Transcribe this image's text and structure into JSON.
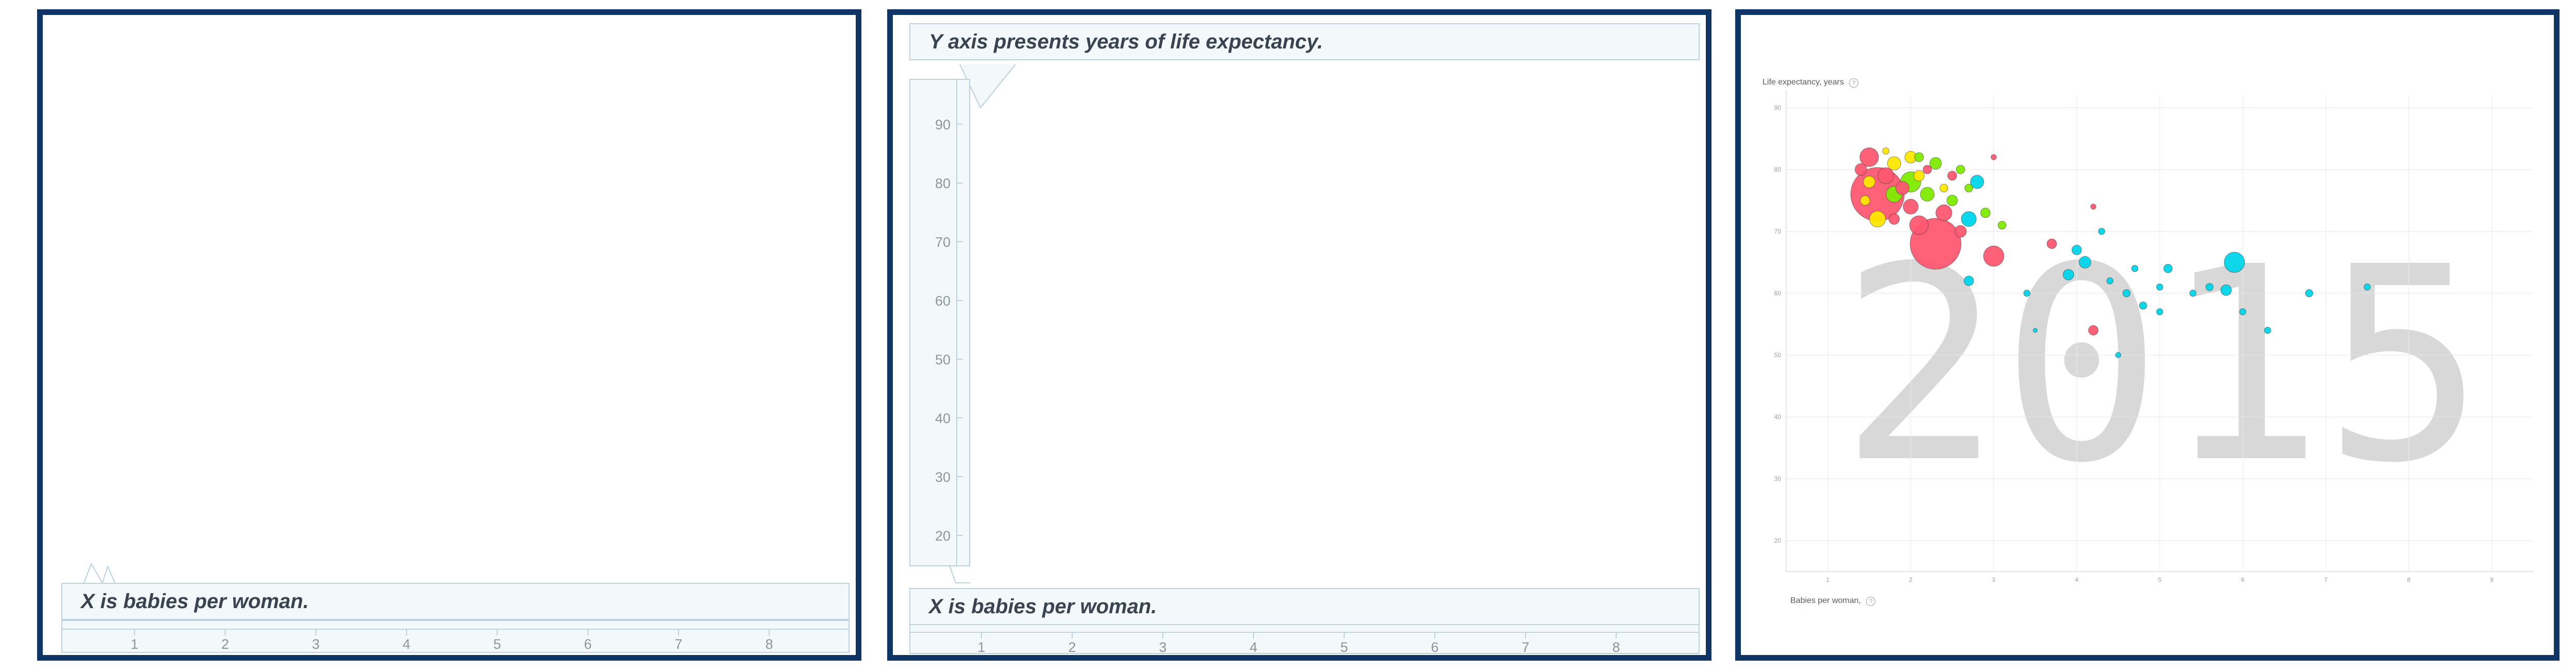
{
  "panels": [
    {
      "x_callout": "X is babies per woman.",
      "x_ticks": [
        1,
        2,
        3,
        4,
        5,
        6,
        7,
        8
      ]
    },
    {
      "y_callout": "Y axis presents years of life expectancy.",
      "x_callout": "X is babies per woman.",
      "y_ticks": [
        90,
        80,
        70,
        60,
        50,
        40,
        30,
        20
      ],
      "x_ticks": [
        1,
        2,
        3,
        4,
        5,
        6,
        7,
        8
      ]
    },
    {
      "ylabel": "Life expectancy, years",
      "xlabel": "Babies per woman,",
      "help_icon": "question-circle-icon",
      "year": "2015"
    }
  ],
  "chart_data": {
    "type": "scatter",
    "title": "",
    "xlabel": "Babies per woman,",
    "ylabel": "Life expectancy, years",
    "xlim": [
      0.5,
      9.5
    ],
    "ylim": [
      15,
      92
    ],
    "x_ticks": [
      1,
      2,
      3,
      4,
      5,
      6,
      7,
      8,
      9
    ],
    "y_ticks": [
      20,
      30,
      40,
      50,
      60,
      70,
      80,
      90
    ],
    "grid": true,
    "background_label": "2015",
    "colors": {
      "red": "#ff5872",
      "yellow": "#ffe700",
      "green": "#7feb00",
      "cyan": "#00d5e9"
    },
    "points": [
      {
        "x": 1.6,
        "y": 76.0,
        "size": 1.0,
        "color": "red"
      },
      {
        "x": 2.3,
        "y": 68.0,
        "size": 0.95,
        "color": "red"
      },
      {
        "x": 1.5,
        "y": 82.0,
        "size": 0.35,
        "color": "red"
      },
      {
        "x": 1.4,
        "y": 80.0,
        "size": 0.22,
        "color": "red"
      },
      {
        "x": 1.7,
        "y": 79.0,
        "size": 0.3,
        "color": "red"
      },
      {
        "x": 1.9,
        "y": 77.0,
        "size": 0.25,
        "color": "red"
      },
      {
        "x": 2.0,
        "y": 74.0,
        "size": 0.28,
        "color": "red"
      },
      {
        "x": 2.1,
        "y": 71.0,
        "size": 0.35,
        "color": "red"
      },
      {
        "x": 2.4,
        "y": 73.0,
        "size": 0.3,
        "color": "red"
      },
      {
        "x": 2.6,
        "y": 70.0,
        "size": 0.22,
        "color": "red"
      },
      {
        "x": 3.0,
        "y": 66.0,
        "size": 0.38,
        "color": "red"
      },
      {
        "x": 2.2,
        "y": 80.0,
        "size": 0.16,
        "color": "red"
      },
      {
        "x": 2.5,
        "y": 79.0,
        "size": 0.17,
        "color": "red"
      },
      {
        "x": 3.0,
        "y": 82.0,
        "size": 0.1,
        "color": "red"
      },
      {
        "x": 3.7,
        "y": 68.0,
        "size": 0.18,
        "color": "red"
      },
      {
        "x": 4.2,
        "y": 74.0,
        "size": 0.1,
        "color": "red"
      },
      {
        "x": 4.2,
        "y": 54.0,
        "size": 0.18,
        "color": "red"
      },
      {
        "x": 1.8,
        "y": 72.0,
        "size": 0.2,
        "color": "red"
      },
      {
        "x": 1.5,
        "y": 78.0,
        "size": 0.22,
        "color": "yellow"
      },
      {
        "x": 1.6,
        "y": 72.0,
        "size": 0.3,
        "color": "yellow"
      },
      {
        "x": 1.8,
        "y": 81.0,
        "size": 0.25,
        "color": "yellow"
      },
      {
        "x": 2.0,
        "y": 82.0,
        "size": 0.22,
        "color": "yellow"
      },
      {
        "x": 1.45,
        "y": 75.0,
        "size": 0.18,
        "color": "yellow"
      },
      {
        "x": 2.1,
        "y": 79.0,
        "size": 0.2,
        "color": "yellow"
      },
      {
        "x": 2.4,
        "y": 77.0,
        "size": 0.15,
        "color": "yellow"
      },
      {
        "x": 1.7,
        "y": 83.0,
        "size": 0.12,
        "color": "yellow"
      },
      {
        "x": 2.0,
        "y": 78.0,
        "size": 0.38,
        "color": "green"
      },
      {
        "x": 1.8,
        "y": 76.0,
        "size": 0.3,
        "color": "green"
      },
      {
        "x": 2.2,
        "y": 76.0,
        "size": 0.26,
        "color": "green"
      },
      {
        "x": 2.5,
        "y": 75.0,
        "size": 0.2,
        "color": "green"
      },
      {
        "x": 2.3,
        "y": 81.0,
        "size": 0.22,
        "color": "green"
      },
      {
        "x": 2.6,
        "y": 80.0,
        "size": 0.16,
        "color": "green"
      },
      {
        "x": 2.9,
        "y": 73.0,
        "size": 0.18,
        "color": "green"
      },
      {
        "x": 3.1,
        "y": 71.0,
        "size": 0.15,
        "color": "green"
      },
      {
        "x": 2.7,
        "y": 77.0,
        "size": 0.15,
        "color": "green"
      },
      {
        "x": 2.1,
        "y": 82.0,
        "size": 0.17,
        "color": "green"
      },
      {
        "x": 2.8,
        "y": 78.0,
        "size": 0.25,
        "color": "cyan"
      },
      {
        "x": 2.7,
        "y": 72.0,
        "size": 0.28,
        "color": "cyan"
      },
      {
        "x": 2.7,
        "y": 62.0,
        "size": 0.18,
        "color": "cyan"
      },
      {
        "x": 3.4,
        "y": 60.0,
        "size": 0.12,
        "color": "cyan"
      },
      {
        "x": 3.9,
        "y": 63.0,
        "size": 0.2,
        "color": "cyan"
      },
      {
        "x": 4.0,
        "y": 67.0,
        "size": 0.18,
        "color": "cyan"
      },
      {
        "x": 4.1,
        "y": 65.0,
        "size": 0.22,
        "color": "cyan"
      },
      {
        "x": 4.3,
        "y": 70.0,
        "size": 0.12,
        "color": "cyan"
      },
      {
        "x": 4.4,
        "y": 62.0,
        "size": 0.12,
        "color": "cyan"
      },
      {
        "x": 4.6,
        "y": 60.0,
        "size": 0.14,
        "color": "cyan"
      },
      {
        "x": 4.7,
        "y": 64.0,
        "size": 0.12,
        "color": "cyan"
      },
      {
        "x": 4.8,
        "y": 58.0,
        "size": 0.14,
        "color": "cyan"
      },
      {
        "x": 5.0,
        "y": 61.0,
        "size": 0.12,
        "color": "cyan"
      },
      {
        "x": 5.0,
        "y": 57.0,
        "size": 0.12,
        "color": "cyan"
      },
      {
        "x": 5.1,
        "y": 64.0,
        "size": 0.16,
        "color": "cyan"
      },
      {
        "x": 5.4,
        "y": 60.0,
        "size": 0.12,
        "color": "cyan"
      },
      {
        "x": 5.6,
        "y": 61.0,
        "size": 0.14,
        "color": "cyan"
      },
      {
        "x": 5.8,
        "y": 60.5,
        "size": 0.2,
        "color": "cyan"
      },
      {
        "x": 5.9,
        "y": 65.0,
        "size": 0.38,
        "color": "cyan"
      },
      {
        "x": 6.0,
        "y": 57.0,
        "size": 0.12,
        "color": "cyan"
      },
      {
        "x": 6.3,
        "y": 54.0,
        "size": 0.12,
        "color": "cyan"
      },
      {
        "x": 6.8,
        "y": 60.0,
        "size": 0.14,
        "color": "cyan"
      },
      {
        "x": 7.5,
        "y": 61.0,
        "size": 0.12,
        "color": "cyan"
      },
      {
        "x": 4.5,
        "y": 50.0,
        "size": 0.1,
        "color": "cyan"
      },
      {
        "x": 3.5,
        "y": 54.0,
        "size": 0.08,
        "color": "cyan"
      }
    ]
  }
}
